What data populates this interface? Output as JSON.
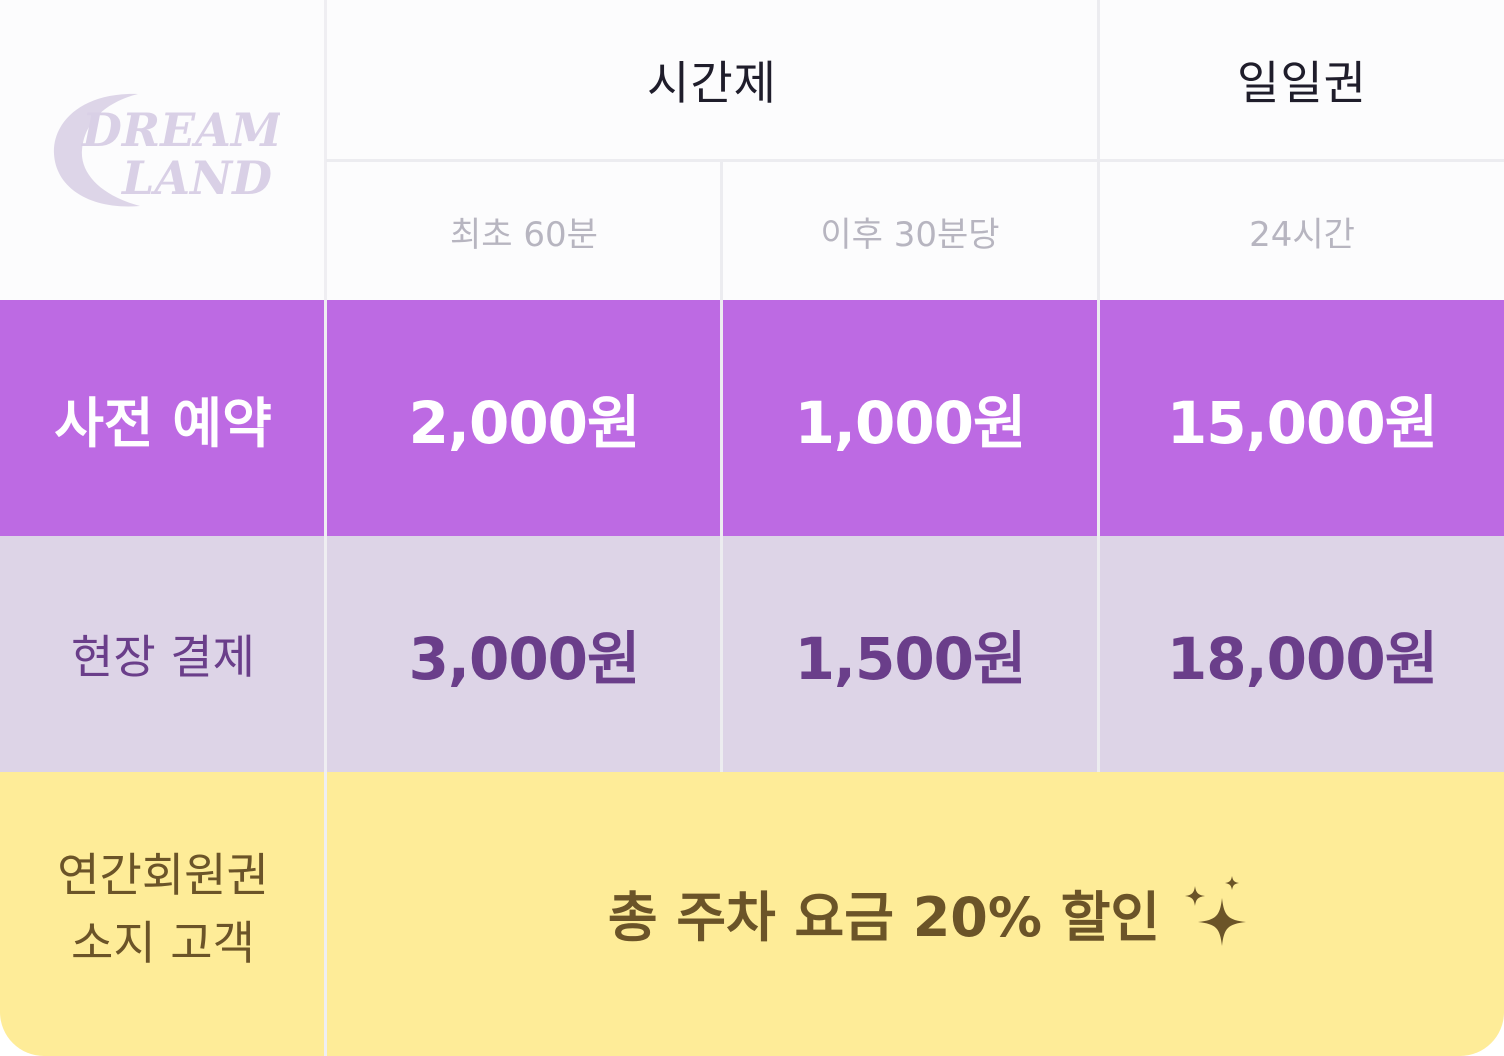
{
  "brand": {
    "logo_line1": "DREAM",
    "logo_line2": "LAND"
  },
  "header": {
    "hourly_label": "시간제",
    "daily_label": "일일권",
    "first_period": "최초 60분",
    "additional_period": "이후 30분당",
    "daily_period": "24시간"
  },
  "rows": {
    "prebook": {
      "label": "사전 예약",
      "first": "2,000원",
      "additional": "1,000원",
      "daily": "15,000원"
    },
    "onsite": {
      "label": "현장 결제",
      "first": "3,000원",
      "additional": "1,500원",
      "daily": "18,000원"
    },
    "member": {
      "label_line1": "연간회원권",
      "label_line2": "소지 고객",
      "benefit": "총 주차 요금 20% 할인"
    }
  },
  "colors": {
    "prebook_bg": "#bd6ae3",
    "onsite_bg": "#ddd4e7",
    "member_bg": "#feec98",
    "onsite_text": "#6a3e8a",
    "member_text": "#6b5428"
  },
  "icons": {
    "benefit_icon": "sparkles-icon"
  }
}
